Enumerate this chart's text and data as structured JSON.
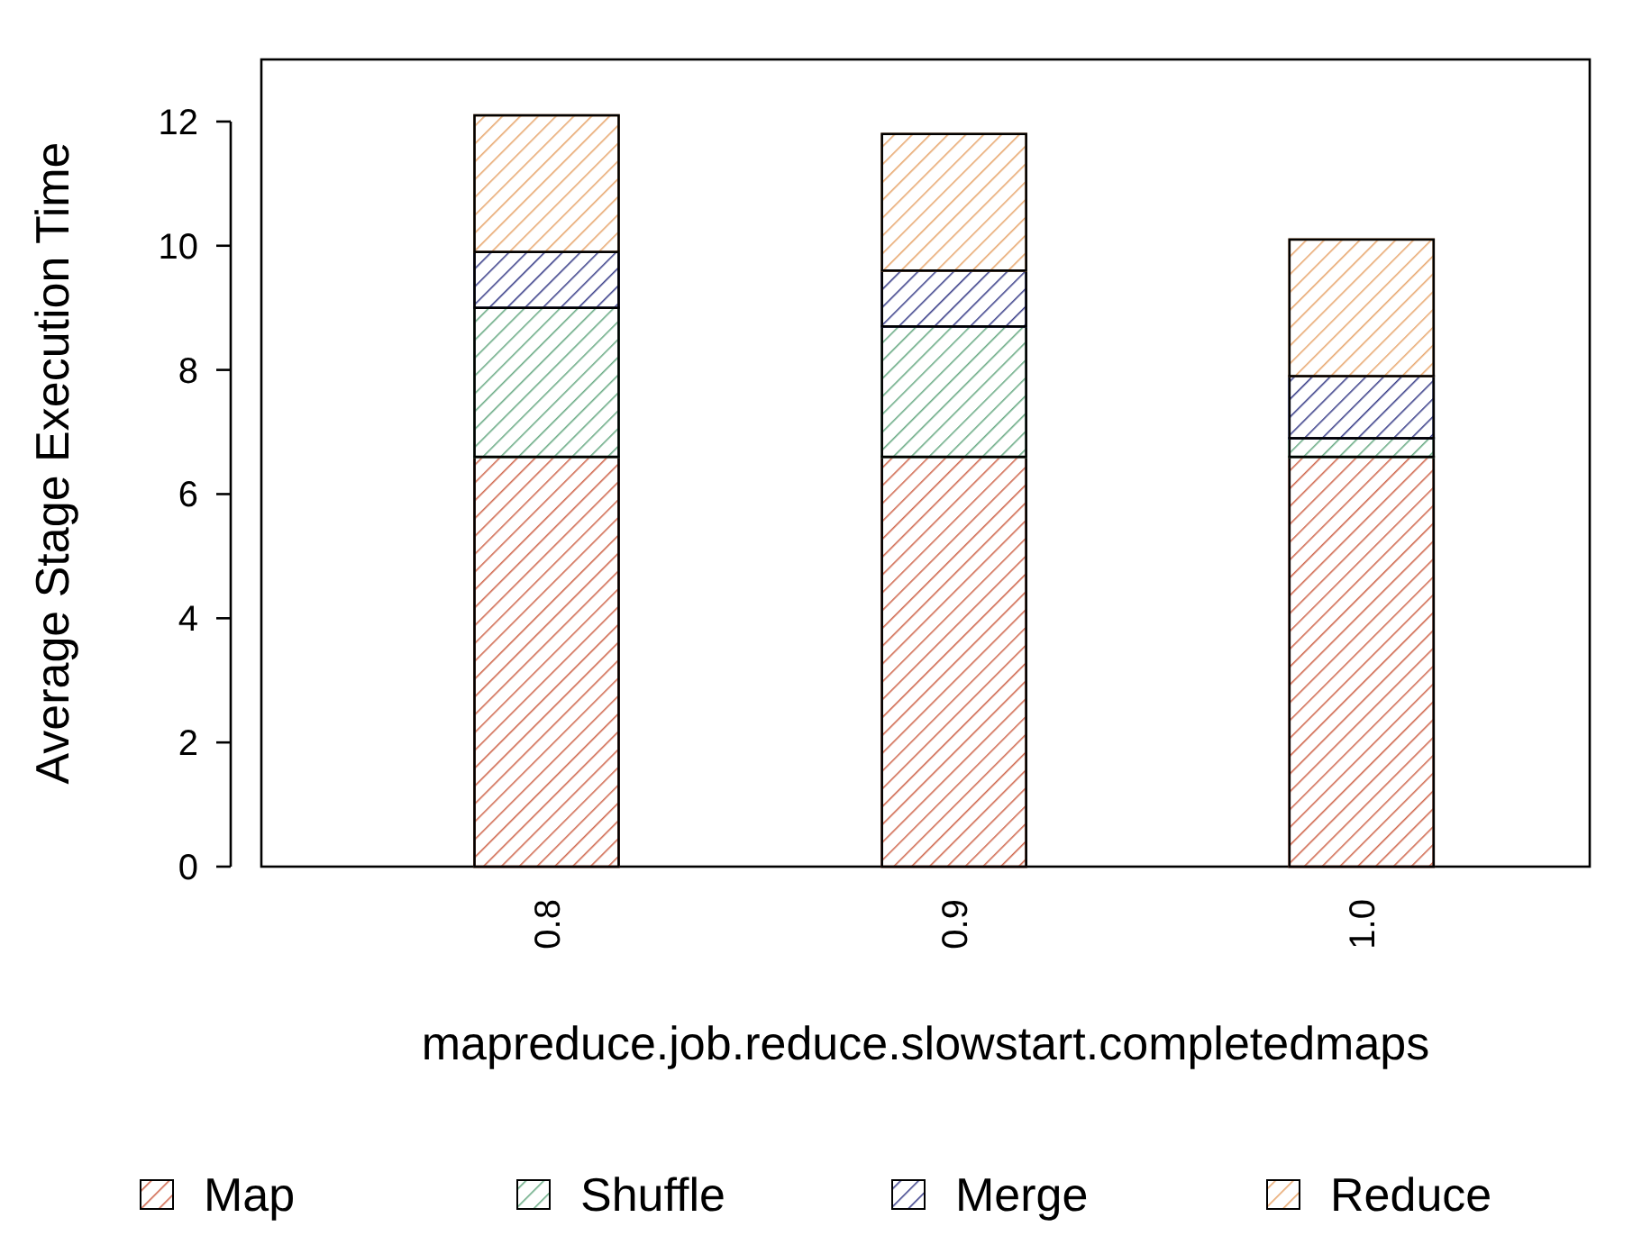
{
  "chart_data": {
    "type": "bar",
    "stacked": true,
    "xlabel": "mapreduce.job.reduce.slowstart.completedmaps",
    "ylabel": "Average Stage Execution Time",
    "categories": [
      "0.8",
      "0.9",
      "1.0"
    ],
    "series": [
      {
        "name": "Map",
        "color": "#d0694f",
        "values": [
          6.6,
          6.6,
          6.6
        ]
      },
      {
        "name": "Shuffle",
        "color": "#6aab85",
        "values": [
          2.4,
          2.1,
          0.3
        ]
      },
      {
        "name": "Merge",
        "color": "#3b3f8a",
        "values": [
          0.9,
          0.9,
          1.0
        ]
      },
      {
        "name": "Reduce",
        "color": "#e8a870",
        "values": [
          2.2,
          2.2,
          2.2
        ]
      }
    ],
    "ylim": [
      0,
      13
    ],
    "yticks": [
      0,
      2,
      4,
      6,
      8,
      10,
      12
    ],
    "legend": "bottom"
  }
}
